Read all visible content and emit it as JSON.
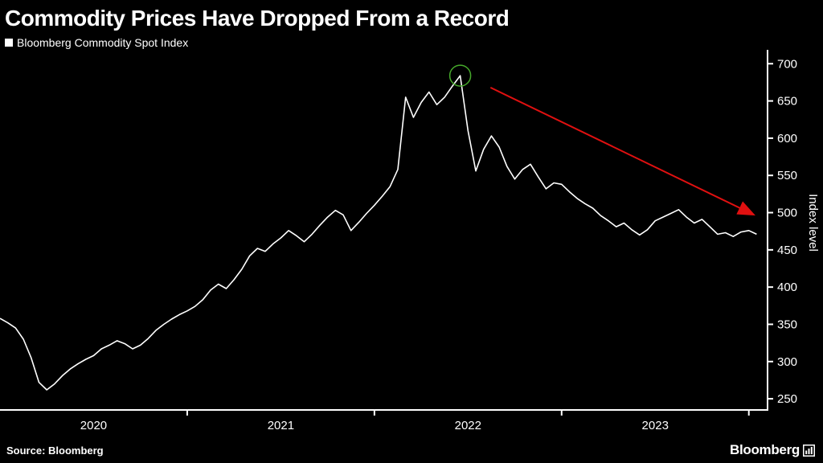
{
  "header": {
    "title": "Commodity Prices Have Dropped From a Record",
    "legend": {
      "label": "Bloomberg Commodity Spot Index",
      "swatch_color": "#ffffff"
    }
  },
  "chart_data": {
    "type": "line",
    "title": "Commodity Prices Have Dropped From a Record",
    "series_name": "Bloomberg Commodity Spot Index",
    "line_color": "#ffffff",
    "background": "#000000",
    "axis_color": "#ffffff",
    "grid": false,
    "legend_position": "top-left",
    "x_domain": [
      2020.0,
      2024.1
    ],
    "x_step": 0.0416667,
    "x_axis": {
      "tick_years": [
        2021,
        2022,
        2023,
        2024
      ],
      "year_labels": [
        {
          "text": "2020",
          "center": 2020.5
        },
        {
          "text": "2021",
          "center": 2021.5
        },
        {
          "text": "2022",
          "center": 2022.5
        },
        {
          "text": "2023",
          "center": 2023.5
        }
      ]
    },
    "y_axis": {
      "label": "Index level",
      "min": 235,
      "max": 710,
      "ticks": [
        250,
        300,
        350,
        400,
        450,
        500,
        550,
        600,
        650,
        700
      ]
    },
    "values": [
      358,
      352,
      345,
      330,
      305,
      272,
      262,
      270,
      281,
      290,
      297,
      303,
      308,
      317,
      322,
      328,
      324,
      317,
      322,
      331,
      342,
      350,
      357,
      363,
      368,
      374,
      383,
      396,
      404,
      398,
      410,
      424,
      442,
      452,
      448,
      458,
      466,
      476,
      469,
      461,
      471,
      483,
      494,
      503,
      497,
      476,
      487,
      499,
      510,
      522,
      535,
      558,
      655,
      628,
      648,
      662,
      645,
      655,
      670,
      684,
      610,
      556,
      585,
      603,
      588,
      562,
      545,
      558,
      565,
      548,
      532,
      540,
      538,
      528,
      519,
      512,
      506,
      496,
      489,
      481,
      486,
      477,
      470,
      477,
      489,
      494,
      499,
      504,
      494,
      486,
      491,
      481,
      471,
      473,
      468,
      474,
      476,
      471
    ],
    "annotations": {
      "peak_circle": {
        "meaning": "record high circled",
        "color": "#46a92b",
        "radius": 13
      },
      "arrow": {
        "meaning": "decline from record",
        "color": "#e01010",
        "from": {
          "x": 2022.62,
          "value": 668
        },
        "to": {
          "x": 2024.02,
          "value": 498
        }
      }
    }
  },
  "footer": {
    "source": "Source: Bloomberg",
    "logo_text": "Bloomberg"
  }
}
